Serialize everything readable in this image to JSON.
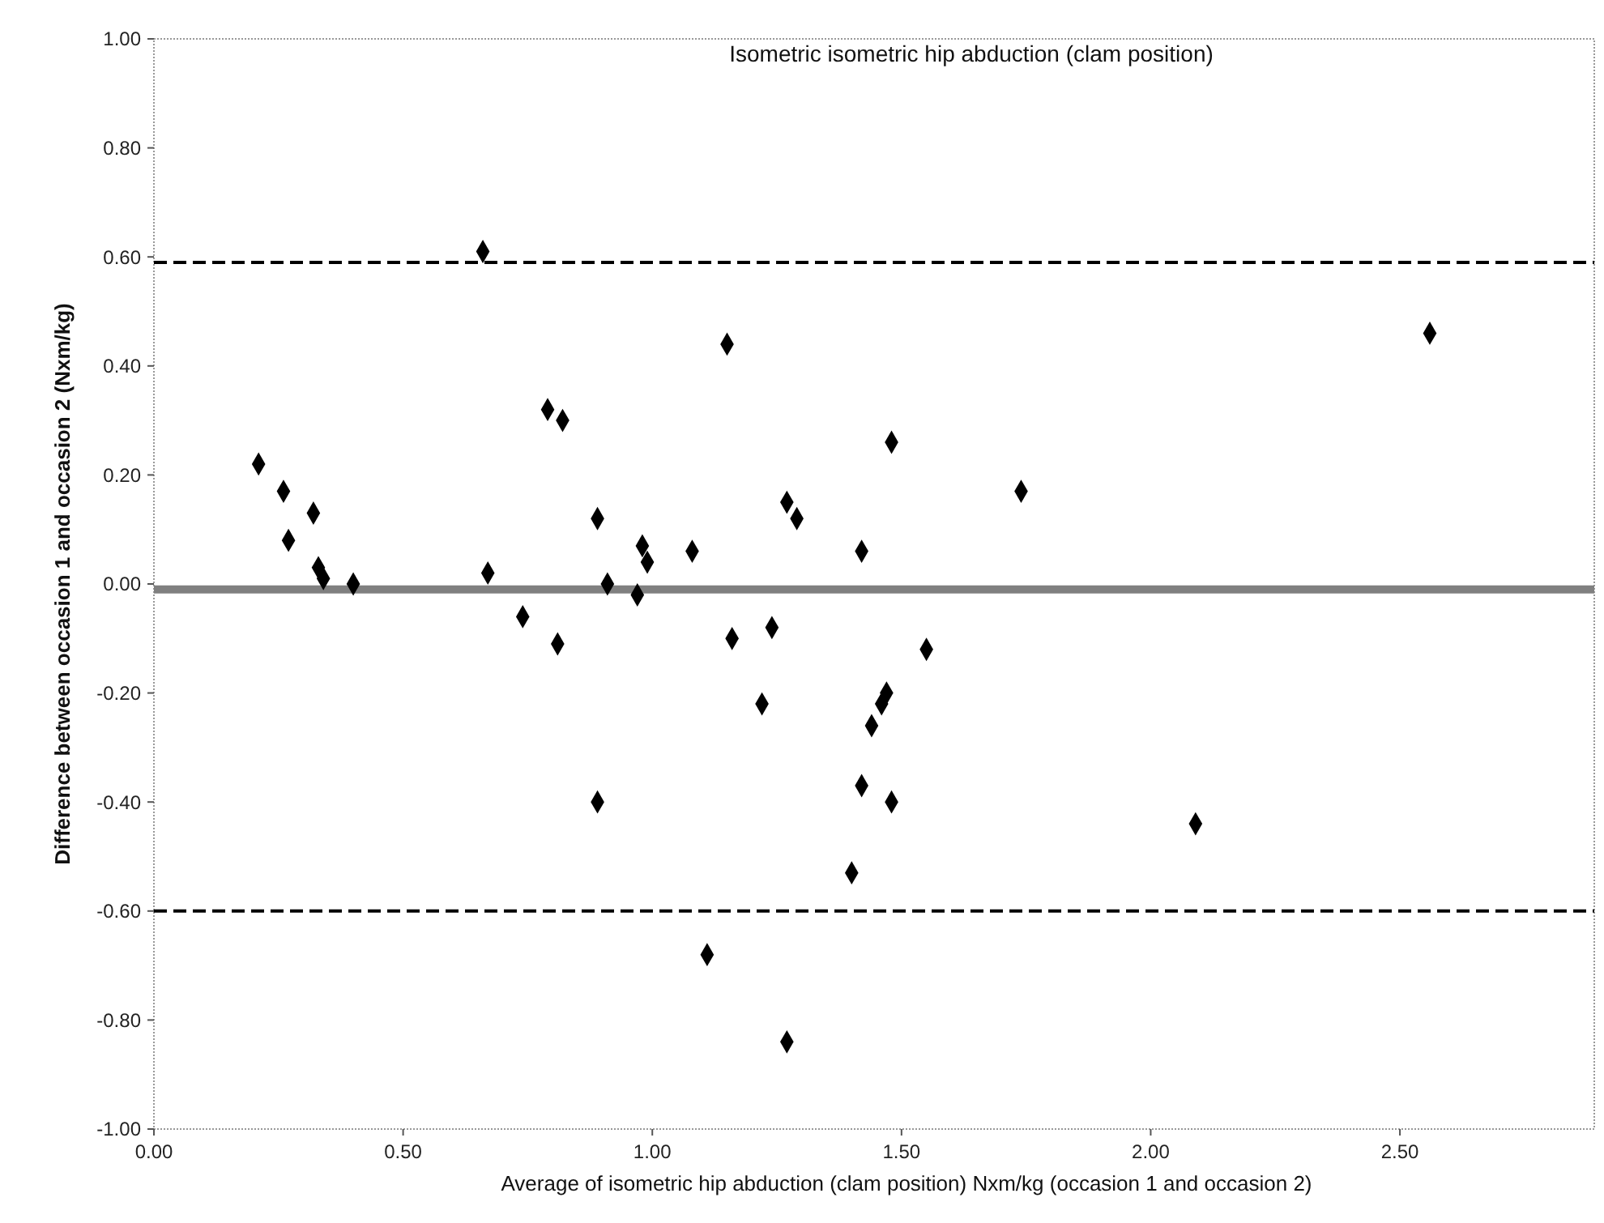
{
  "chart_data": {
    "type": "scatter",
    "title": "Isometric isometric hip abduction (clam position)",
    "xlabel": "Average of isometric hip abduction (clam position)  Nxm/kg (occasion 1 and occasion 2)",
    "ylabel": "Difference between occasion 1 and occasion 2 (Nxm/kg)",
    "x": [
      0.21,
      0.26,
      0.27,
      0.32,
      0.33,
      0.34,
      0.4,
      0.66,
      0.67,
      0.74,
      0.79,
      0.82,
      0.81,
      0.89,
      0.91,
      0.97,
      0.98,
      0.99,
      1.08,
      1.15,
      1.16,
      1.24,
      1.22,
      1.27,
      1.29,
      1.42,
      1.48,
      1.74,
      2.56,
      1.55,
      1.47,
      1.46,
      1.44,
      1.42,
      1.48,
      2.09,
      1.4,
      0.89,
      1.11,
      1.27
    ],
    "series": [
      {
        "color": "#000000",
        "values": [
          0.22,
          0.17,
          0.08,
          0.13,
          0.03,
          0.01,
          0.0,
          0.61,
          0.02,
          -0.06,
          0.32,
          0.3,
          -0.11,
          0.12,
          0.0,
          -0.02,
          0.07,
          0.04,
          0.06,
          0.44,
          -0.1,
          -0.08,
          -0.22,
          0.15,
          0.12,
          0.06,
          0.26,
          0.17,
          0.46,
          -0.12,
          -0.2,
          -0.22,
          -0.26,
          -0.37,
          -0.4,
          -0.44,
          -0.53,
          -0.4,
          -0.68,
          -0.84
        ]
      }
    ],
    "marker": "diamond",
    "xlim": [
      0,
      2.89
    ],
    "xticks": [
      {
        "value": 0,
        "label": "0.00"
      },
      {
        "value": 0.5,
        "label": "0.50"
      },
      {
        "value": 1,
        "label": "1.00"
      },
      {
        "value": 1.5,
        "label": "1.50"
      },
      {
        "value": 2,
        "label": "2.00"
      },
      {
        "value": 2.5,
        "label": "2.50"
      }
    ],
    "ylim": [
      -1,
      1
    ],
    "yticks": [
      {
        "value": -1,
        "label": "-1.00"
      },
      {
        "value": -0.8,
        "label": "-0.80"
      },
      {
        "value": -0.6,
        "label": "-0.60"
      },
      {
        "value": -0.4,
        "label": "-0.40"
      },
      {
        "value": -0.2,
        "label": "-0.20"
      },
      {
        "value": 0,
        "label": "0.00"
      },
      {
        "value": 0.2,
        "label": "0.20"
      },
      {
        "value": 0.4,
        "label": "0.40"
      },
      {
        "value": 0.6,
        "label": "0.60"
      },
      {
        "value": 0.8,
        "label": "0.80"
      },
      {
        "value": 1,
        "label": "1.00"
      }
    ],
    "ref_lines": [
      {
        "axis": "y",
        "value": 0.59,
        "color": "#000000",
        "line_style": "dashed"
      },
      {
        "axis": "y",
        "value": -0.01,
        "color": "#808080",
        "line_style": "solid"
      },
      {
        "axis": "y",
        "value": -0.6,
        "color": "#000000",
        "line_style": "dashed"
      }
    ],
    "grid": false
  }
}
